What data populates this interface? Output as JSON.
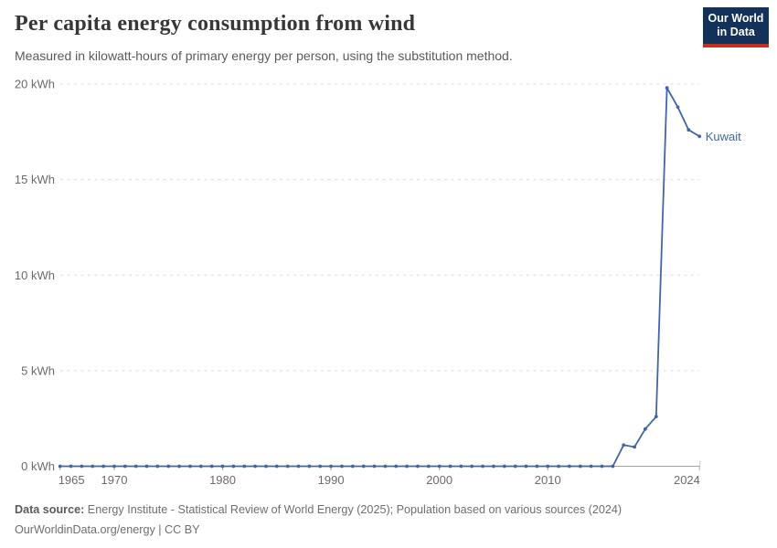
{
  "header": {
    "title": "Per capita energy consumption from wind",
    "subtitle": "Measured in kilowatt-hours of primary energy per person, using the substitution method.",
    "logo": {
      "line1": "Our World",
      "line2": "in Data"
    }
  },
  "footer": {
    "source_label": "Data source:",
    "source_text": " Energy Institute - Statistical Review of World Energy (2025); Population based on various sources (2024)",
    "license_line": "OurWorldinData.org/energy | CC BY"
  },
  "colors": {
    "line": "#4166a5",
    "end_label": "#4166a5",
    "gridline": "#dedede",
    "axis_line": "#a3a3a3",
    "tick_mark": "#a8a8a8",
    "axis_text": "#6b6b6b",
    "logo_navy": "#12325a",
    "logo_red": "#cb2c20"
  },
  "chart_data": {
    "type": "line",
    "title": "Per capita energy consumption from wind",
    "xlabel": "",
    "ylabel": "",
    "xlim": [
      1965,
      2024
    ],
    "ylim": [
      0,
      20
    ],
    "x_ticks": [
      1965,
      1970,
      1980,
      1990,
      2000,
      2010,
      2024
    ],
    "y_ticks": [
      0,
      5,
      10,
      15,
      20
    ],
    "y_tick_suffix": " kWh",
    "grid": "dashed horizontal",
    "legend_position": "end-of-line label",
    "end_label": "Kuwait",
    "series": [
      {
        "name": "Kuwait",
        "points": [
          [
            1965,
            0
          ],
          [
            1966,
            0
          ],
          [
            1967,
            0
          ],
          [
            1968,
            0
          ],
          [
            1969,
            0
          ],
          [
            1970,
            0
          ],
          [
            1971,
            0
          ],
          [
            1972,
            0
          ],
          [
            1973,
            0
          ],
          [
            1974,
            0
          ],
          [
            1975,
            0
          ],
          [
            1976,
            0
          ],
          [
            1977,
            0
          ],
          [
            1978,
            0
          ],
          [
            1979,
            0
          ],
          [
            1980,
            0
          ],
          [
            1981,
            0
          ],
          [
            1982,
            0
          ],
          [
            1983,
            0
          ],
          [
            1984,
            0
          ],
          [
            1985,
            0
          ],
          [
            1986,
            0
          ],
          [
            1987,
            0
          ],
          [
            1988,
            0
          ],
          [
            1989,
            0
          ],
          [
            1990,
            0
          ],
          [
            1991,
            0
          ],
          [
            1992,
            0
          ],
          [
            1993,
            0
          ],
          [
            1994,
            0
          ],
          [
            1995,
            0
          ],
          [
            1996,
            0
          ],
          [
            1997,
            0
          ],
          [
            1998,
            0
          ],
          [
            1999,
            0
          ],
          [
            2000,
            0
          ],
          [
            2001,
            0
          ],
          [
            2002,
            0
          ],
          [
            2003,
            0
          ],
          [
            2004,
            0
          ],
          [
            2005,
            0
          ],
          [
            2006,
            0
          ],
          [
            2007,
            0
          ],
          [
            2008,
            0
          ],
          [
            2009,
            0
          ],
          [
            2010,
            0
          ],
          [
            2011,
            0
          ],
          [
            2012,
            0
          ],
          [
            2013,
            0
          ],
          [
            2014,
            0
          ],
          [
            2015,
            0
          ],
          [
            2016,
            0
          ],
          [
            2017,
            1.11
          ],
          [
            2018,
            1.01
          ],
          [
            2019,
            1.95
          ],
          [
            2020,
            2.6
          ],
          [
            2021,
            19.8
          ],
          [
            2022,
            18.79
          ],
          [
            2023,
            17.6
          ],
          [
            2024,
            17.26
          ]
        ]
      }
    ]
  }
}
